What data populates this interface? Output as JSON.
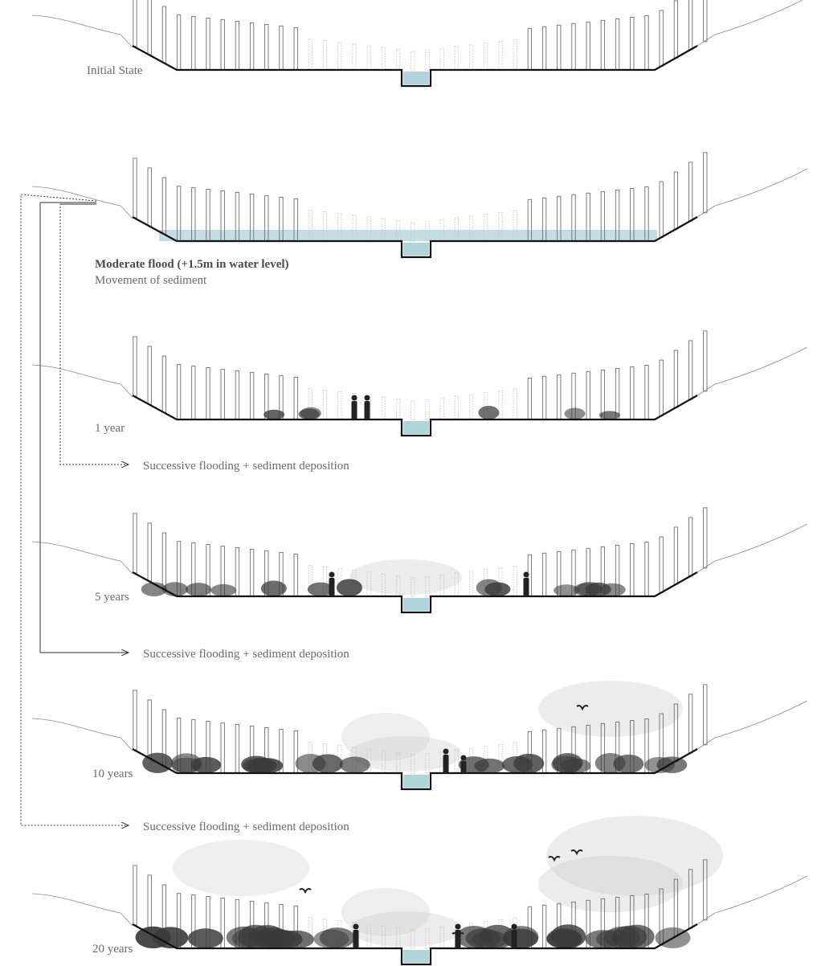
{
  "stages": [
    {
      "label": "Initial State",
      "vegetation": 0,
      "people": 0,
      "birds": 0,
      "flood": false
    },
    {
      "label": "Moderate flood (+1.5m in water level)",
      "sublabel": "Movement of sediment",
      "vegetation": 0,
      "people": 0,
      "birds": 0,
      "flood": true
    },
    {
      "label": "1 year",
      "vegetation": 1,
      "people": 2,
      "birds": 0,
      "flood": false
    },
    {
      "label": "5 years",
      "vegetation": 2,
      "people": 2,
      "birds": 0,
      "flood": false
    },
    {
      "label": "10 years",
      "vegetation": 3,
      "people": 2,
      "birds": 1,
      "flood": false
    },
    {
      "label": "20 years",
      "vegetation": 4,
      "people": 3,
      "birds": 4,
      "flood": false
    }
  ],
  "flow_labels": [
    "Successive flooding + sediment deposition",
    "Successive flooding + sediment deposition",
    "Successive flooding + sediment deposition"
  ],
  "colors": {
    "ground": "#111111",
    "water": "#a9cfd6",
    "post": "#6e6e6e",
    "vegetation": "#3a3a3a",
    "haze": "#c8c8c8",
    "text": "#6a6a6a",
    "arrow": "#333333"
  }
}
